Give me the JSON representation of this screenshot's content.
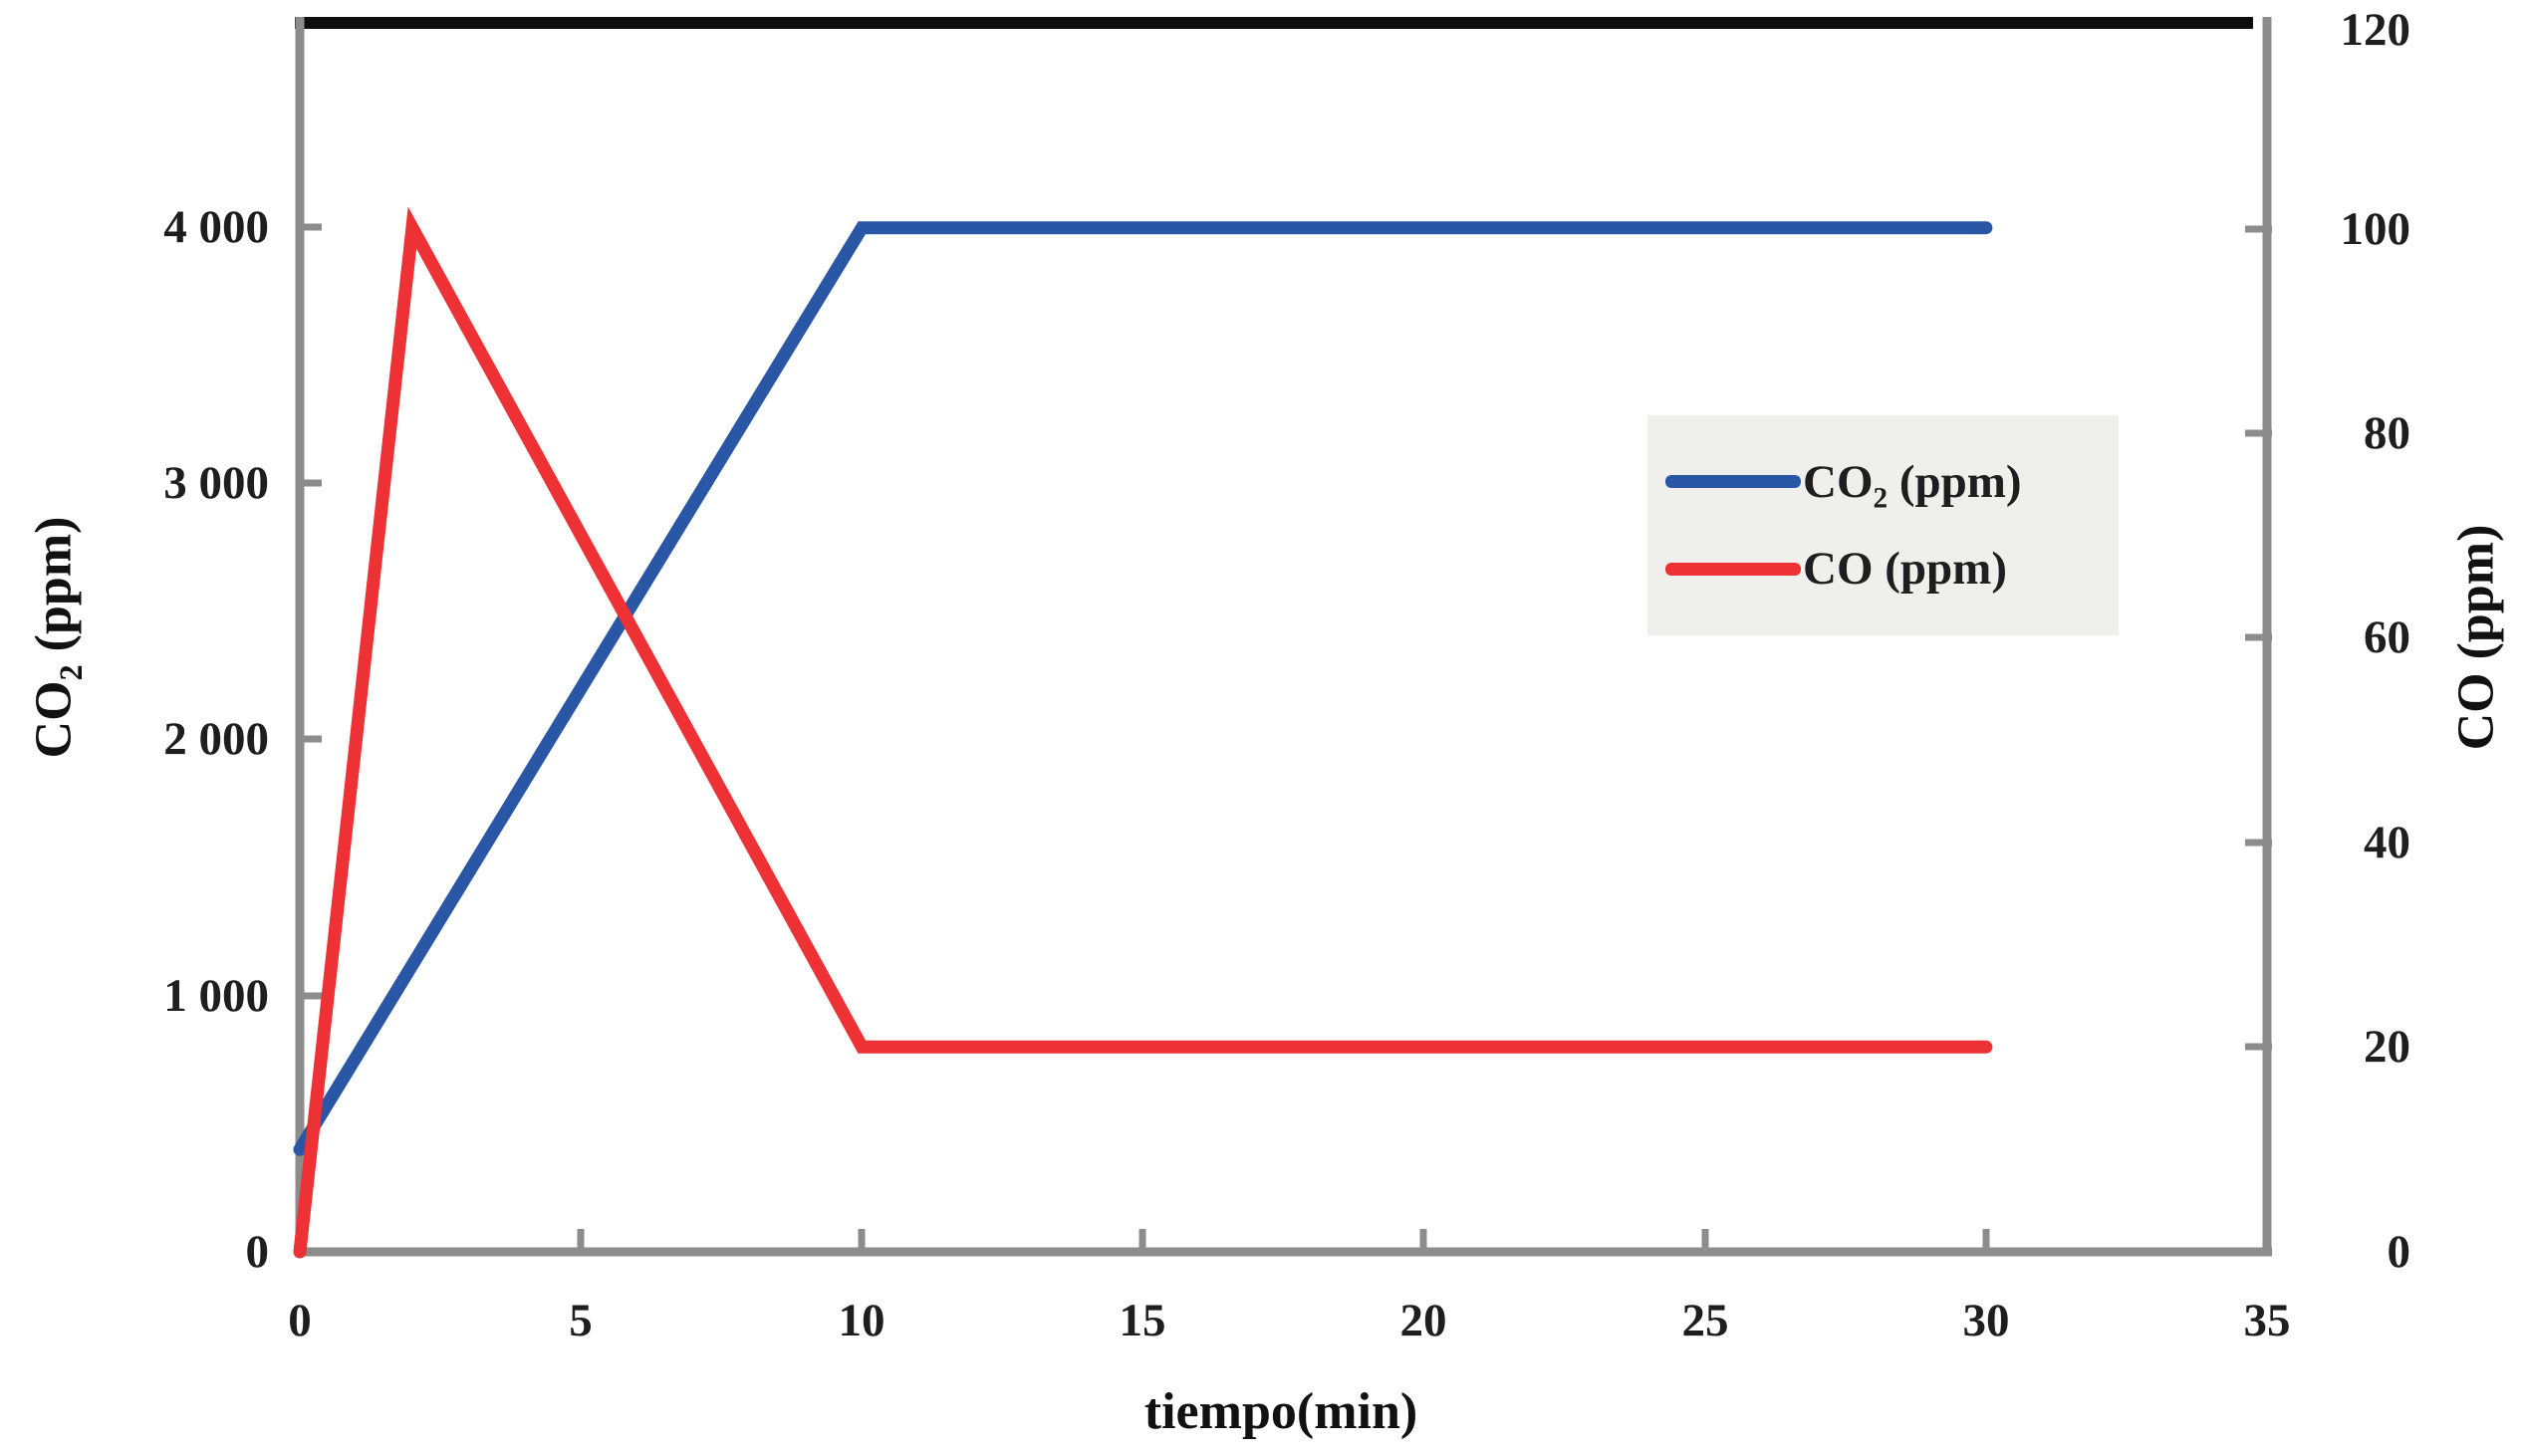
{
  "chart_data": {
    "type": "line",
    "title": "",
    "xlabel": "tiempo(min)",
    "ylabel_left": {
      "pre": "CO",
      "sub": "2",
      "post": " (ppm)"
    },
    "ylabel_right": {
      "pre": "CO",
      "sub": "",
      "post": " (ppm)"
    },
    "axes": {
      "x": {
        "range": [
          0,
          35
        ],
        "tick_values": [
          0,
          5,
          10,
          15,
          20,
          25,
          30,
          35
        ],
        "tick_labels": [
          "0",
          "5",
          "10",
          "15",
          "20",
          "25",
          "30",
          "35"
        ]
      },
      "left": {
        "range": [
          0,
          4800
        ],
        "tick_values": [
          0,
          1000,
          2000,
          3000,
          4000
        ],
        "tick_labels": [
          "0",
          "1 000",
          "2 000",
          "3 000",
          "4 000"
        ]
      },
      "right": {
        "range": [
          0,
          120
        ],
        "tick_values": [
          0,
          20,
          40,
          60,
          80,
          100,
          120
        ],
        "tick_labels": [
          "0",
          "20",
          "40",
          "60",
          "80",
          "100",
          "120"
        ]
      }
    },
    "grid": false,
    "legend_position": "right-center",
    "series": [
      {
        "name": "CO2 (ppm)",
        "label": {
          "pre": "CO",
          "sub": "2",
          "post": " (ppm)"
        },
        "axis": "left",
        "color": "#2a57a5",
        "x": [
          0,
          10,
          30
        ],
        "y": [
          400,
          4000,
          4000
        ]
      },
      {
        "name": "CO (ppm)",
        "label": {
          "pre": "CO",
          "sub": "",
          "post": " (ppm)"
        },
        "axis": "right",
        "color": "#ee3134",
        "x": [
          0,
          2,
          10,
          30
        ],
        "y": [
          0,
          100,
          20,
          20
        ]
      }
    ],
    "colors": {
      "axis_line": "#8c8c8c",
      "plot_border_top": "#0d0d0d",
      "legend_background": "#efefec",
      "text": "#1e1e1e"
    }
  }
}
